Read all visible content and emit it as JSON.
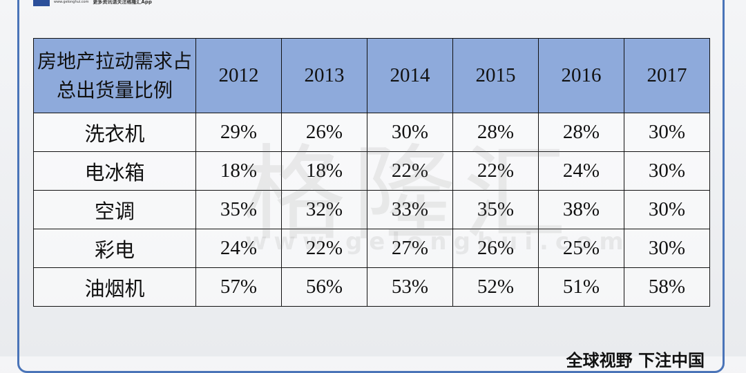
{
  "header": {
    "logo_url": "www.gelonghui.com",
    "logo_caption": "更多资讯请关注格隆汇App"
  },
  "watermark": {
    "text": "格隆汇",
    "url": "www.gelonghui.com"
  },
  "table": {
    "columns": [
      "房地产拉动需求占总出货量比例",
      "2012",
      "2013",
      "2014",
      "2015",
      "2016",
      "2017"
    ],
    "rows": [
      [
        "洗衣机",
        "29%",
        "26%",
        "30%",
        "28%",
        "28%",
        "30%"
      ],
      [
        "电冰箱",
        "18%",
        "18%",
        "22%",
        "22%",
        "24%",
        "30%"
      ],
      [
        "空调",
        "35%",
        "32%",
        "33%",
        "35%",
        "38%",
        "30%"
      ],
      [
        "彩电",
        "24%",
        "22%",
        "27%",
        "26%",
        "25%",
        "30%"
      ],
      [
        "油烟机",
        "57%",
        "56%",
        "53%",
        "52%",
        "51%",
        "58%"
      ]
    ]
  },
  "footer": {
    "slogan": "全球视野 下注中国"
  }
}
